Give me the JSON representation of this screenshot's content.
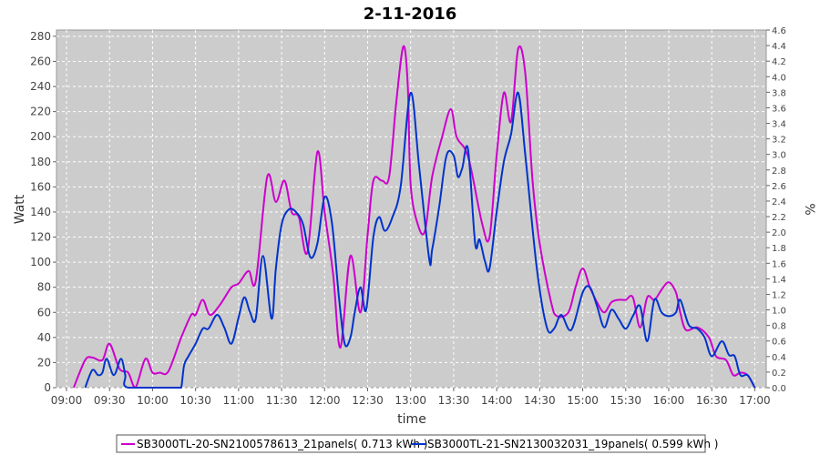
{
  "chart_data": {
    "type": "line",
    "title": "2-11-2016",
    "xlabel": "time",
    "ylabel": "Watt",
    "y2label": "%",
    "ylim": [
      0,
      285
    ],
    "y2lim": [
      0,
      4.6
    ],
    "grid": true,
    "legend_position": "bottom",
    "x_ticks": [
      "09:00",
      "09:30",
      "10:00",
      "10:30",
      "11:00",
      "11:30",
      "12:00",
      "12:30",
      "13:00",
      "13:30",
      "14:00",
      "14:30",
      "15:00",
      "15:30",
      "16:00",
      "16:30",
      "17:00"
    ],
    "y_ticks": [
      0,
      20,
      40,
      60,
      80,
      100,
      120,
      140,
      160,
      180,
      200,
      220,
      240,
      260,
      280
    ],
    "y2_ticks": [
      "0.0",
      "0.2",
      "0.4",
      "0.6",
      "0.8",
      "1.0",
      "1.2",
      "1.4",
      "1.6",
      "1.8",
      "2.0",
      "2.2",
      "2.4",
      "2.6",
      "2.8",
      "3.0",
      "3.2",
      "3.4",
      "3.6",
      "3.8",
      "4.0",
      "4.2",
      "4.4",
      "4.6"
    ],
    "series": [
      {
        "name": "SB3000TL-20-SN2100578613_21panels( 0.713 kWh )",
        "color": "#cc00cc",
        "points": [
          [
            "09:05",
            0
          ],
          [
            "09:13",
            22
          ],
          [
            "09:18",
            24
          ],
          [
            "09:25",
            22
          ],
          [
            "09:30",
            35
          ],
          [
            "09:37",
            15
          ],
          [
            "09:43",
            12
          ],
          [
            "09:48",
            0
          ],
          [
            "09:55",
            23
          ],
          [
            "10:00",
            12
          ],
          [
            "10:05",
            12
          ],
          [
            "10:11",
            13
          ],
          [
            "10:20",
            40
          ],
          [
            "10:27",
            58
          ],
          [
            "10:30",
            58
          ],
          [
            "10:35",
            70
          ],
          [
            "10:40",
            58
          ],
          [
            "10:47",
            66
          ],
          [
            "10:55",
            80
          ],
          [
            "11:00",
            83
          ],
          [
            "11:07",
            93
          ],
          [
            "11:12",
            85
          ],
          [
            "11:20",
            168
          ],
          [
            "11:26",
            148
          ],
          [
            "11:32",
            165
          ],
          [
            "11:37",
            140
          ],
          [
            "11:42",
            136
          ],
          [
            "11:48",
            108
          ],
          [
            "11:55",
            188
          ],
          [
            "12:00",
            140
          ],
          [
            "12:06",
            90
          ],
          [
            "12:11",
            32
          ],
          [
            "12:18",
            105
          ],
          [
            "12:25",
            60
          ],
          [
            "12:30",
            122
          ],
          [
            "12:34",
            165
          ],
          [
            "12:40",
            165
          ],
          [
            "12:45",
            168
          ],
          [
            "12:50",
            228
          ],
          [
            "12:55",
            272
          ],
          [
            "12:58",
            240
          ],
          [
            "13:00",
            162
          ],
          [
            "13:05",
            130
          ],
          [
            "13:10",
            125
          ],
          [
            "13:15",
            168
          ],
          [
            "13:22",
            200
          ],
          [
            "13:28",
            222
          ],
          [
            "13:32",
            200
          ],
          [
            "13:38",
            190
          ],
          [
            "13:42",
            175
          ],
          [
            "13:50",
            130
          ],
          [
            "13:55",
            120
          ],
          [
            "14:00",
            185
          ],
          [
            "14:05",
            235
          ],
          [
            "14:10",
            212
          ],
          [
            "14:15",
            270
          ],
          [
            "14:20",
            250
          ],
          [
            "14:25",
            165
          ],
          [
            "14:30",
            115
          ],
          [
            "14:38",
            68
          ],
          [
            "14:42",
            57
          ],
          [
            "14:50",
            60
          ],
          [
            "14:55",
            80
          ],
          [
            "15:00",
            95
          ],
          [
            "15:05",
            80
          ],
          [
            "15:10",
            68
          ],
          [
            "15:15",
            60
          ],
          [
            "15:20",
            68
          ],
          [
            "15:25",
            70
          ],
          [
            "15:30",
            70
          ],
          [
            "15:35",
            72
          ],
          [
            "15:40",
            48
          ],
          [
            "15:45",
            72
          ],
          [
            "15:50",
            70
          ],
          [
            "15:55",
            78
          ],
          [
            "16:00",
            84
          ],
          [
            "16:05",
            76
          ],
          [
            "16:08",
            60
          ],
          [
            "16:12",
            46
          ],
          [
            "16:20",
            48
          ],
          [
            "16:28",
            40
          ],
          [
            "16:33",
            25
          ],
          [
            "16:40",
            22
          ],
          [
            "16:45",
            10
          ],
          [
            "16:50",
            12
          ],
          [
            "16:55",
            10
          ],
          [
            "17:00",
            0
          ]
        ]
      },
      {
        "name": "SB3000TL-21-SN2130032031_19panels( 0.599 kWh )",
        "color": "#0033cc",
        "points": [
          [
            "09:13",
            0
          ],
          [
            "09:18",
            14
          ],
          [
            "09:22",
            10
          ],
          [
            "09:25",
            12
          ],
          [
            "09:28",
            23
          ],
          [
            "09:33",
            10
          ],
          [
            "09:38",
            23
          ],
          [
            "09:41",
            10
          ],
          [
            "09:43",
            0
          ],
          [
            "10:15",
            0
          ],
          [
            "10:18",
            0
          ],
          [
            "10:20",
            0
          ],
          [
            "10:22",
            18
          ],
          [
            "10:25",
            25
          ],
          [
            "10:30",
            35
          ],
          [
            "10:35",
            47
          ],
          [
            "10:39",
            47
          ],
          [
            "10:45",
            58
          ],
          [
            "10:50",
            48
          ],
          [
            "10:55",
            35
          ],
          [
            "11:00",
            56
          ],
          [
            "11:04",
            72
          ],
          [
            "11:08",
            60
          ],
          [
            "11:12",
            55
          ],
          [
            "11:17",
            105
          ],
          [
            "11:23",
            55
          ],
          [
            "11:26",
            95
          ],
          [
            "11:30",
            130
          ],
          [
            "11:35",
            142
          ],
          [
            "11:40",
            140
          ],
          [
            "11:45",
            130
          ],
          [
            "11:50",
            104
          ],
          [
            "11:55",
            115
          ],
          [
            "12:00",
            152
          ],
          [
            "12:05",
            132
          ],
          [
            "12:10",
            72
          ],
          [
            "12:14",
            35
          ],
          [
            "12:18",
            40
          ],
          [
            "12:21",
            60
          ],
          [
            "12:25",
            80
          ],
          [
            "12:29",
            62
          ],
          [
            "12:34",
            120
          ],
          [
            "12:38",
            136
          ],
          [
            "12:42",
            125
          ],
          [
            "12:47",
            135
          ],
          [
            "12:53",
            160
          ],
          [
            "13:00",
            235
          ],
          [
            "13:06",
            175
          ],
          [
            "13:13",
            102
          ],
          [
            "13:15",
            110
          ],
          [
            "13:20",
            145
          ],
          [
            "13:25",
            185
          ],
          [
            "13:30",
            185
          ],
          [
            "13:33",
            168
          ],
          [
            "13:36",
            175
          ],
          [
            "13:40",
            190
          ],
          [
            "13:45",
            115
          ],
          [
            "13:48",
            118
          ],
          [
            "13:52",
            100
          ],
          [
            "13:55",
            95
          ],
          [
            "14:00",
            140
          ],
          [
            "14:05",
            180
          ],
          [
            "14:10",
            202
          ],
          [
            "14:15",
            235
          ],
          [
            "14:20",
            185
          ],
          [
            "14:28",
            95
          ],
          [
            "14:35",
            48
          ],
          [
            "14:40",
            47
          ],
          [
            "14:45",
            58
          ],
          [
            "14:52",
            46
          ],
          [
            "15:00",
            76
          ],
          [
            "15:05",
            80
          ],
          [
            "15:10",
            65
          ],
          [
            "15:15",
            48
          ],
          [
            "15:20",
            62
          ],
          [
            "15:25",
            55
          ],
          [
            "15:30",
            47
          ],
          [
            "15:35",
            57
          ],
          [
            "15:40",
            65
          ],
          [
            "15:45",
            37
          ],
          [
            "15:50",
            70
          ],
          [
            "15:55",
            60
          ],
          [
            "16:00",
            57
          ],
          [
            "16:05",
            60
          ],
          [
            "16:08",
            70
          ],
          [
            "16:14",
            50
          ],
          [
            "16:20",
            47
          ],
          [
            "16:25",
            40
          ],
          [
            "16:30",
            25
          ],
          [
            "16:37",
            37
          ],
          [
            "16:42",
            26
          ],
          [
            "16:46",
            25
          ],
          [
            "16:50",
            10
          ],
          [
            "16:55",
            10
          ],
          [
            "17:00",
            0
          ]
        ]
      }
    ]
  }
}
